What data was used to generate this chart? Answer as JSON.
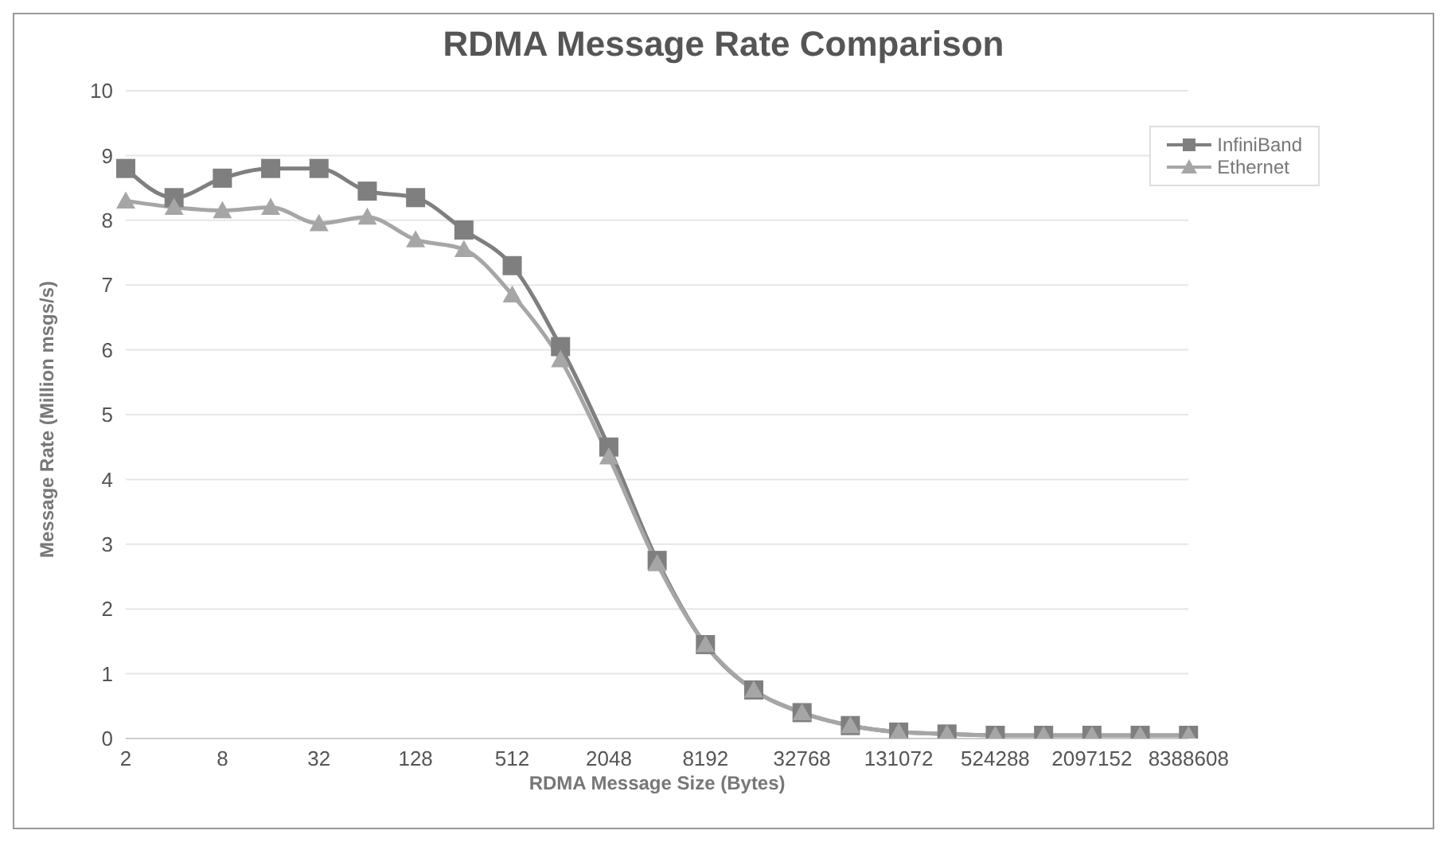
{
  "chart_data": {
    "type": "line",
    "title": "RDMA Message Rate Comparison",
    "xlabel": "RDMA Message Size (Bytes)",
    "ylabel": "Message Rate (Million msgs/s)",
    "categories": [
      "2",
      null,
      "8",
      null,
      "32",
      null,
      "128",
      null,
      "512",
      null,
      "2048",
      null,
      "8192",
      null,
      "32768",
      null,
      "131072",
      null,
      "524288",
      null,
      "2097152",
      null,
      "8388608"
    ],
    "series": [
      {
        "name": "InfiniBand",
        "color": "#7f7f7f",
        "marker": "square",
        "values": [
          8.8,
          8.35,
          8.65,
          8.8,
          8.8,
          8.45,
          8.35,
          7.85,
          7.3,
          6.05,
          4.5,
          2.75,
          1.45,
          0.75,
          0.4,
          0.2,
          0.1,
          0.07,
          0.05,
          0.05,
          0.05,
          0.05,
          0.05
        ]
      },
      {
        "name": "Ethernet",
        "color": "#a6a6a6",
        "marker": "triangle",
        "values": [
          8.3,
          8.2,
          8.15,
          8.2,
          7.95,
          8.05,
          7.7,
          7.55,
          6.85,
          5.85,
          4.35,
          2.7,
          1.45,
          0.75,
          0.4,
          0.2,
          0.1,
          0.07,
          0.05,
          0.05,
          0.05,
          0.05,
          0.05
        ]
      }
    ],
    "ylim": [
      0,
      10
    ],
    "yticks": [
      0,
      1,
      2,
      3,
      4,
      5,
      6,
      7,
      8,
      9,
      10
    ],
    "grid": "y",
    "legend": "top right"
  }
}
